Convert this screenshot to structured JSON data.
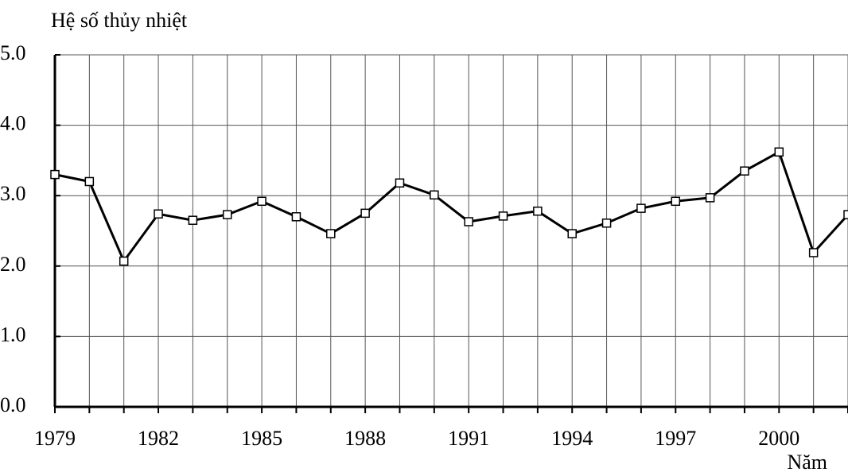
{
  "chart_data": {
    "type": "line",
    "y_label": "Hệ số thủy nhiệt",
    "x_label": "Năm",
    "x": [
      1979,
      1980,
      1981,
      1982,
      1983,
      1984,
      1985,
      1986,
      1987,
      1988,
      1989,
      1990,
      1991,
      1992,
      1993,
      1994,
      1995,
      1996,
      1997,
      1998,
      1999,
      2000,
      2001,
      2002
    ],
    "series": [
      {
        "name": "Hệ số thủy nhiệt",
        "color": "#000000",
        "values": [
          3.3,
          3.2,
          2.07,
          2.74,
          2.65,
          2.73,
          2.92,
          2.7,
          2.46,
          2.75,
          3.18,
          3.01,
          2.63,
          2.71,
          2.78,
          2.46,
          2.61,
          2.82,
          2.92,
          2.97,
          3.35,
          3.62,
          2.19,
          2.73
        ]
      }
    ],
    "xlim": [
      1979,
      2002
    ],
    "xticks": [
      1979,
      1982,
      1985,
      1988,
      1991,
      1994,
      1997,
      2000
    ],
    "ylim": [
      0,
      5
    ],
    "yticks": [
      {
        "value": 0,
        "label": "0.0"
      },
      {
        "value": 1,
        "label": "1.0"
      },
      {
        "value": 2,
        "label": "2.0"
      },
      {
        "value": 3,
        "label": "3.0"
      },
      {
        "value": 4,
        "label": "4.0"
      },
      {
        "value": 5,
        "label": "5.0"
      }
    ],
    "grid": true
  }
}
